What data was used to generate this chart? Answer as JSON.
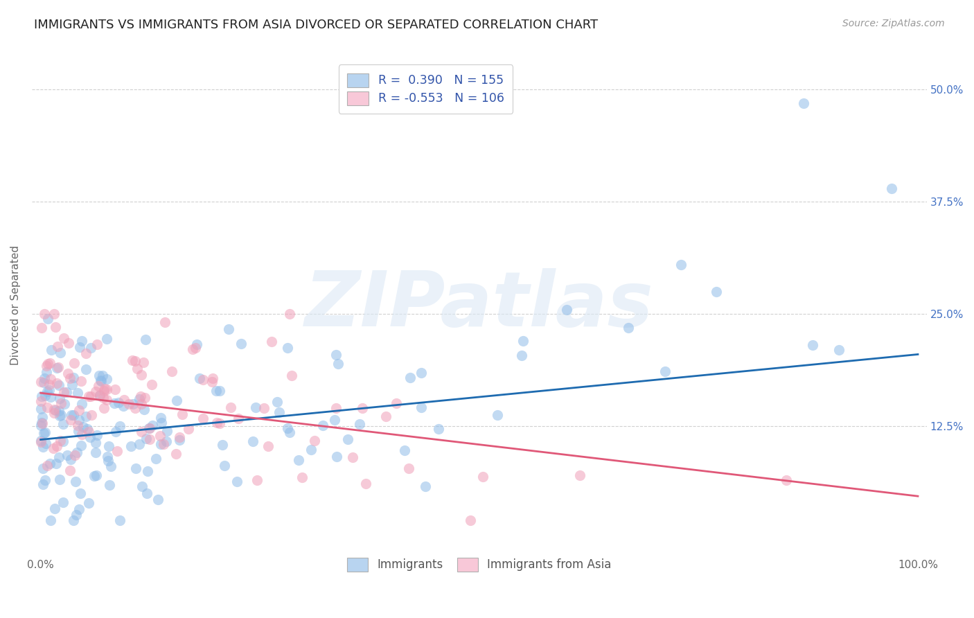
{
  "title": "IMMIGRANTS VS IMMIGRANTS FROM ASIA DIVORCED OR SEPARATED CORRELATION CHART",
  "source": "Source: ZipAtlas.com",
  "ylabel": "Divorced or Separated",
  "watermark": "ZIPatlas",
  "xlim": [
    -0.01,
    1.01
  ],
  "ylim": [
    -0.02,
    0.54
  ],
  "xtick_positions": [
    0.0,
    0.25,
    0.5,
    0.75,
    1.0
  ],
  "xtick_labels": [
    "0.0%",
    "",
    "",
    "",
    "100.0%"
  ],
  "yticks": [
    0.125,
    0.25,
    0.375,
    0.5
  ],
  "ytick_labels": [
    "12.5%",
    "25.0%",
    "37.5%",
    "50.0%"
  ],
  "blue_color": "#90bce8",
  "pink_color": "#f0a0b8",
  "blue_line_color": "#1e6bb0",
  "pink_line_color": "#e05878",
  "legend_blue_label": "R =  0.390   N = 155",
  "legend_pink_label": "R = -0.553   N = 106",
  "legend_blue_marker_color": "#b8d4f0",
  "legend_pink_marker_color": "#f8c8d8",
  "bottom_legend_blue": "Immigrants",
  "bottom_legend_pink": "Immigrants from Asia",
  "N_blue": 155,
  "N_pink": 106,
  "blue_intercept": 0.11,
  "blue_slope": 0.095,
  "pink_intercept": 0.162,
  "pink_slope": -0.115,
  "background_color": "#ffffff",
  "grid_color": "#d0d0d0",
  "title_fontsize": 13,
  "axis_label_fontsize": 11,
  "tick_fontsize": 11,
  "source_fontsize": 10,
  "scatter_size": 120,
  "scatter_alpha": 0.55
}
